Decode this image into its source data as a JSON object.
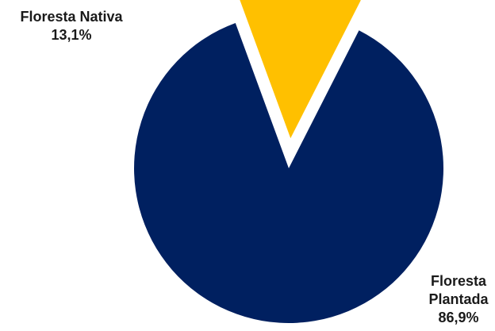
{
  "chart_data": {
    "type": "pie",
    "title": "",
    "legend": "none",
    "start_angle_deg": 27,
    "slices": [
      {
        "label_lines": [
          "Floresta",
          "Plantada"
        ],
        "value": 86.9,
        "value_label": "86,9%",
        "color": "#002060",
        "exploded": false
      },
      {
        "label_lines": [
          "Floresta Nativa"
        ],
        "value": 13.1,
        "value_label": "13,1%",
        "color": "#FFC000",
        "exploded": true
      }
    ]
  }
}
